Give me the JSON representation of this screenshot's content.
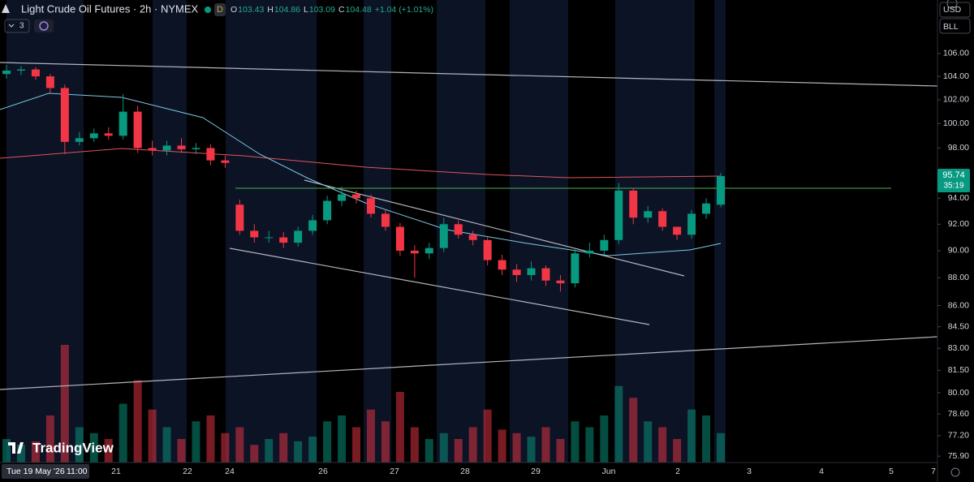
{
  "chart_data": {
    "type": "candlestick",
    "title": "Light Crude Oil Futures · 2h · NYMEX",
    "badge": "D",
    "ohlc": [
      {
        "label": "O",
        "value": "103.43"
      },
      {
        "label": "H",
        "value": "104.86"
      },
      {
        "label": "L",
        "value": "103.09"
      },
      {
        "label": "C",
        "value": "104.48"
      }
    ],
    "change": "+1.04 (+1.01%)",
    "indicator_count": "3",
    "currency": "USD",
    "unit": "BLL",
    "brand": "TradingView",
    "last_price": "95.74",
    "countdown": "35:19",
    "crosshair_date": "Tue 19 May '26",
    "crosshair_time": "11:00",
    "x_labels": [
      "21",
      "22",
      "24",
      "26",
      "27",
      "28",
      "29",
      "Jun",
      "2",
      "3",
      "4",
      "5",
      "7"
    ],
    "log_scale": true,
    "ylim": [
      75.5,
      110.8
    ],
    "yticks": [
      {
        "value": 106,
        "label": "106.00"
      },
      {
        "value": 104,
        "label": "104.00"
      },
      {
        "value": 102,
        "label": "102.00"
      },
      {
        "value": 100,
        "label": "100.00"
      },
      {
        "value": 98,
        "label": "98.00"
      },
      {
        "value": 94,
        "label": "94.00"
      },
      {
        "value": 92,
        "label": "92.00"
      },
      {
        "value": 90,
        "label": "90.00"
      },
      {
        "value": 88,
        "label": "88.00"
      },
      {
        "value": 86,
        "label": "86.00"
      },
      {
        "value": 84.5,
        "label": "84.50"
      },
      {
        "value": 83,
        "label": "83.00"
      },
      {
        "value": 81.5,
        "label": "81.50"
      },
      {
        "value": 80,
        "label": "80.00"
      },
      {
        "value": 78.6,
        "label": "78.60"
      },
      {
        "value": 77.2,
        "label": "77.20"
      },
      {
        "value": 75.9,
        "label": "75.90"
      }
    ],
    "up_color": "#089981",
    "down_color": "#f23645",
    "open": [
      104.2,
      104.5,
      104.6,
      104.0,
      103.0,
      98.5,
      98.8,
      99.2,
      99.0,
      101.0,
      98.0,
      97.8,
      98.2,
      97.9,
      98.0,
      97.0,
      93.5,
      91.5,
      91.0,
      91.0,
      90.6,
      91.5,
      92.3,
      93.8,
      94.3,
      94.0,
      92.8,
      91.8,
      90.0,
      89.8,
      90.2,
      92.0,
      91.2,
      90.8,
      89.3,
      88.6,
      88.2,
      88.7,
      87.8,
      87.6,
      89.8,
      90.0,
      90.8,
      94.6,
      92.5,
      93.0,
      91.8,
      91.2,
      92.8,
      93.5
    ],
    "high": [
      105.0,
      104.9,
      104.8,
      104.2,
      103.3,
      99.3,
      99.6,
      99.7,
      102.5,
      101.5,
      98.6,
      98.6,
      98.8,
      98.4,
      98.3,
      97.4,
      93.9,
      92.0,
      91.5,
      91.4,
      91.8,
      92.7,
      94.2,
      94.9,
      94.6,
      94.3,
      93.1,
      92.1,
      90.4,
      90.6,
      92.5,
      92.3,
      91.5,
      91.0,
      89.7,
      89.0,
      89.2,
      88.9,
      88.2,
      90.2,
      90.6,
      91.2,
      95.2,
      94.8,
      93.4,
      93.2,
      91.8,
      93.1,
      94.0,
      96.0
    ],
    "low": [
      103.8,
      104.1,
      103.7,
      102.6,
      97.5,
      98.2,
      98.5,
      98.7,
      98.7,
      97.6,
      97.4,
      97.4,
      97.6,
      97.5,
      96.6,
      96.4,
      91.2,
      90.6,
      90.6,
      90.2,
      90.3,
      91.2,
      92.0,
      93.4,
      93.6,
      92.5,
      91.5,
      89.6,
      88.0,
      89.4,
      89.9,
      90.9,
      90.4,
      88.9,
      88.2,
      87.7,
      87.8,
      87.4,
      87.0,
      87.3,
      89.5,
      89.7,
      90.5,
      92.0,
      92.1,
      91.5,
      90.8,
      90.9,
      92.4,
      93.3
    ],
    "close": [
      104.5,
      104.6,
      104.0,
      103.0,
      98.5,
      98.8,
      99.2,
      99.0,
      101.0,
      98.0,
      97.8,
      98.2,
      97.9,
      98.0,
      97.0,
      96.8,
      91.5,
      91.0,
      91.0,
      90.6,
      91.5,
      92.3,
      93.8,
      94.3,
      94.0,
      92.8,
      91.8,
      90.0,
      89.8,
      90.2,
      92.0,
      91.2,
      90.8,
      89.3,
      88.6,
      88.2,
      88.7,
      87.8,
      87.6,
      89.8,
      90.0,
      90.8,
      94.6,
      92.5,
      93.0,
      91.8,
      91.2,
      92.8,
      93.6,
      95.74
    ],
    "volumes": [
      20,
      15,
      18,
      40,
      100,
      30,
      25,
      20,
      50,
      70,
      45,
      30,
      20,
      35,
      40,
      25,
      30,
      15,
      20,
      25,
      18,
      22,
      35,
      40,
      30,
      45,
      35,
      60,
      30,
      20,
      25,
      20,
      30,
      45,
      28,
      25,
      22,
      30,
      20,
      35,
      30,
      40,
      65,
      55,
      35,
      30,
      20,
      45,
      40,
      25
    ]
  }
}
